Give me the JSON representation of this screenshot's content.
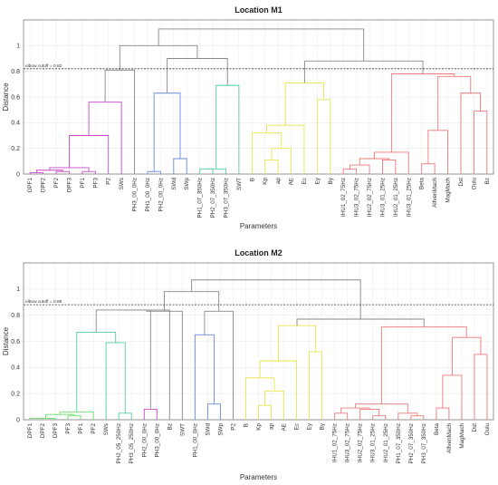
{
  "chart_data": [
    {
      "type": "dendrogram",
      "title": "Location M1",
      "xlabel": "Parameters",
      "ylabel": "Distance",
      "ylim": [
        0,
        1.2
      ],
      "yticks": [
        0,
        0.2,
        0.4,
        0.6,
        0.8,
        1
      ],
      "grid": true,
      "cutoff": {
        "value": 0.82,
        "label": "elbow cutoff = 0.82"
      },
      "leaves": [
        "DPF1",
        "DPF2",
        "PF2",
        "DPF3",
        "PF1",
        "PF3",
        "P2",
        "SWs",
        "PH3_00_0Hz",
        "PH1_00_0Hz",
        "PH2_00_0Hz",
        "SWd",
        "SWp",
        "PH1_07_350Hz",
        "PH2_07_350Hz",
        "PH3_07_350Hz",
        "SWT",
        "B",
        "Kp",
        "ap",
        "AE",
        "Ec",
        "Ey",
        "By",
        "IHU1_02_75Hz",
        "IHU3_02_75Hz",
        "IHU2_02_75Hz",
        "IHU3_01_25Hz",
        "IHU2_01_25Hz",
        "IHU3_01_25Hz",
        "Beta",
        "AlfvenMach",
        "MagMach",
        "Dst",
        "Oulu",
        "Bz"
      ],
      "colors": {
        "magenta": "#cc44cc",
        "blue": "#6688dd",
        "cyan": "#55ccaa",
        "yellow": "#e6e650",
        "red": "#ee7777",
        "gray": "#888888"
      },
      "links": [
        {
          "a": 0,
          "b": 1,
          "h": 0.01,
          "c": "magenta"
        },
        {
          "a": 2,
          "b": 3,
          "h": 0.02,
          "c": "magenta"
        },
        {
          "a": 4,
          "b": 5,
          "h": 0.02,
          "c": "magenta"
        },
        {
          "a": 36,
          "b": 37,
          "h": 0.03,
          "c": "magenta"
        },
        {
          "a": 38,
          "b": 39,
          "h": 0.05,
          "c": "magenta"
        },
        {
          "a": 40,
          "b": 6,
          "h": 0.3,
          "c": "magenta"
        },
        {
          "a": 41,
          "b": 7,
          "h": 0.56,
          "c": "magenta"
        },
        {
          "a": 9,
          "b": 10,
          "h": 0.02,
          "c": "blue"
        },
        {
          "a": 11,
          "b": 12,
          "h": 0.12,
          "c": "blue"
        },
        {
          "a": 43,
          "b": 44,
          "h": 0.63,
          "c": "blue"
        },
        {
          "a": 13,
          "b": 14,
          "h": 0.04,
          "c": "cyan"
        },
        {
          "a": 46,
          "b": 15,
          "h": 0.04,
          "c": "cyan"
        },
        {
          "a": 47,
          "b": 16,
          "h": 0.69,
          "c": "cyan"
        },
        {
          "a": 18,
          "b": 19,
          "h": 0.11,
          "c": "yellow"
        },
        {
          "a": 49,
          "b": 20,
          "h": 0.2,
          "c": "yellow"
        },
        {
          "a": 17,
          "b": 50,
          "h": 0.32,
          "c": "yellow"
        },
        {
          "a": 51,
          "b": 21,
          "h": 0.38,
          "c": "yellow"
        },
        {
          "a": 22,
          "b": 23,
          "h": 0.58,
          "c": "yellow"
        },
        {
          "a": 52,
          "b": 53,
          "h": 0.71,
          "c": "yellow"
        },
        {
          "a": 24,
          "b": 25,
          "h": 0.04,
          "c": "red"
        },
        {
          "a": 55,
          "b": 26,
          "h": 0.07,
          "c": "red"
        },
        {
          "a": 27,
          "b": 28,
          "h": 0.11,
          "c": "red"
        },
        {
          "a": 56,
          "b": 57,
          "h": 0.12,
          "c": "red"
        },
        {
          "a": 58,
          "b": 29,
          "h": 0.17,
          "c": "red"
        },
        {
          "a": 30,
          "b": 31,
          "h": 0.08,
          "c": "red"
        },
        {
          "a": 60,
          "b": 32,
          "h": 0.34,
          "c": "red"
        },
        {
          "a": 34,
          "b": 35,
          "h": 0.49,
          "c": "red"
        },
        {
          "a": 33,
          "b": 62,
          "h": 0.63,
          "c": "red"
        },
        {
          "a": 61,
          "b": 63,
          "h": 0.76,
          "c": "red"
        },
        {
          "a": 59,
          "b": 64,
          "h": 0.78,
          "c": "red"
        },
        {
          "a": 42,
          "b": 8,
          "h": 0.81,
          "c": "gray"
        },
        {
          "a": 45,
          "b": 48,
          "h": 0.9,
          "c": "gray"
        },
        {
          "a": 66,
          "b": 67,
          "h": 1.0,
          "c": "gray"
        },
        {
          "a": 54,
          "b": 65,
          "h": 0.88,
          "c": "gray"
        },
        {
          "a": 68,
          "b": 69,
          "h": 1.13,
          "c": "gray"
        }
      ]
    },
    {
      "type": "dendrogram",
      "title": "Location M2",
      "xlabel": "Parameters",
      "ylabel": "Distance",
      "ylim": [
        0,
        1.2
      ],
      "yticks": [
        0,
        0.2,
        0.4,
        0.6,
        0.8,
        1
      ],
      "grid": true,
      "cutoff": {
        "value": 0.88,
        "label": "elbow cutoff = 0.88"
      },
      "leaves": [
        "DPF1",
        "DPF2",
        "DPF3",
        "PF3",
        "PF1",
        "PF2",
        "SWs",
        "PH2_05_250Hz",
        "PH3_05_250Hz",
        "PH2_00_0Hz",
        "PH3_00_0Hz",
        "Bz",
        "SWT",
        "PH1_00_0Hz",
        "SWd",
        "SWp",
        "P2",
        "B",
        "Kp",
        "ap",
        "AE",
        "Ec",
        "Ey",
        "By",
        "IHU1_02_75Hz",
        "IHU3_02_75Hz",
        "IHU2_02_75Hz",
        "IHU3_01_25Hz",
        "IHU2_01_25Hz",
        "PH1_07_350Hz",
        "PH2_07_350Hz",
        "PH3_07_350Hz",
        "Beta",
        "AlfvenMach",
        "MagMach",
        "Dst",
        "Oulu"
      ],
      "colors": {
        "green": "#66dd66",
        "cyan": "#55ccaa",
        "magenta": "#cc44cc",
        "blue": "#6688dd",
        "yellow": "#e6e650",
        "red": "#ee7777",
        "gray": "#888888"
      },
      "links": [
        {
          "a": 0,
          "b": 1,
          "h": 0.01,
          "c": "green"
        },
        {
          "a": 37,
          "b": 2,
          "h": 0.01,
          "c": "green"
        },
        {
          "a": 3,
          "b": 4,
          "h": 0.03,
          "c": "green"
        },
        {
          "a": 38,
          "b": 39,
          "h": 0.04,
          "c": "green"
        },
        {
          "a": 40,
          "b": 5,
          "h": 0.06,
          "c": "green"
        },
        {
          "a": 7,
          "b": 8,
          "h": 0.05,
          "c": "cyan"
        },
        {
          "a": 6,
          "b": 42,
          "h": 0.59,
          "c": "cyan"
        },
        {
          "a": 41,
          "b": 43,
          "h": 0.67,
          "c": "cyan"
        },
        {
          "a": 9,
          "b": 10,
          "h": 0.08,
          "c": "magenta"
        },
        {
          "a": 14,
          "b": 15,
          "h": 0.12,
          "c": "blue"
        },
        {
          "a": 13,
          "b": 46,
          "h": 0.65,
          "c": "blue"
        },
        {
          "a": 18,
          "b": 19,
          "h": 0.11,
          "c": "yellow"
        },
        {
          "a": 48,
          "b": 20,
          "h": 0.22,
          "c": "yellow"
        },
        {
          "a": 17,
          "b": 49,
          "h": 0.32,
          "c": "yellow"
        },
        {
          "a": 50,
          "b": 21,
          "h": 0.45,
          "c": "yellow"
        },
        {
          "a": 22,
          "b": 23,
          "h": 0.52,
          "c": "yellow"
        },
        {
          "a": 51,
          "b": 52,
          "h": 0.72,
          "c": "yellow"
        },
        {
          "a": 24,
          "b": 25,
          "h": 0.05,
          "c": "red"
        },
        {
          "a": 27,
          "b": 28,
          "h": 0.03,
          "c": "red"
        },
        {
          "a": 26,
          "b": 55,
          "h": 0.08,
          "c": "red"
        },
        {
          "a": 54,
          "b": 56,
          "h": 0.09,
          "c": "red"
        },
        {
          "a": 30,
          "b": 31,
          "h": 0.03,
          "c": "red"
        },
        {
          "a": 29,
          "b": 58,
          "h": 0.05,
          "c": "red"
        },
        {
          "a": 57,
          "b": 59,
          "h": 0.12,
          "c": "red"
        },
        {
          "a": 32,
          "b": 33,
          "h": 0.09,
          "c": "red"
        },
        {
          "a": 61,
          "b": 34,
          "h": 0.34,
          "c": "red"
        },
        {
          "a": 35,
          "b": 36,
          "h": 0.5,
          "c": "red"
        },
        {
          "a": 62,
          "b": 63,
          "h": 0.63,
          "c": "red"
        },
        {
          "a": 60,
          "b": 64,
          "h": 0.71,
          "c": "red"
        },
        {
          "a": 44,
          "b": 45,
          "h": 0.84,
          "c": "gray"
        },
        {
          "a": 66,
          "b": 11,
          "h": 0.84,
          "c": "gray"
        },
        {
          "a": 67,
          "b": 12,
          "h": 0.83,
          "c": "gray"
        },
        {
          "a": 47,
          "b": 16,
          "h": 0.83,
          "c": "gray"
        },
        {
          "a": 68,
          "b": 69,
          "h": 0.98,
          "c": "gray"
        },
        {
          "a": 53,
          "b": 65,
          "h": 0.77,
          "c": "gray"
        },
        {
          "a": 70,
          "b": 71,
          "h": 1.07,
          "c": "gray"
        }
      ]
    }
  ]
}
